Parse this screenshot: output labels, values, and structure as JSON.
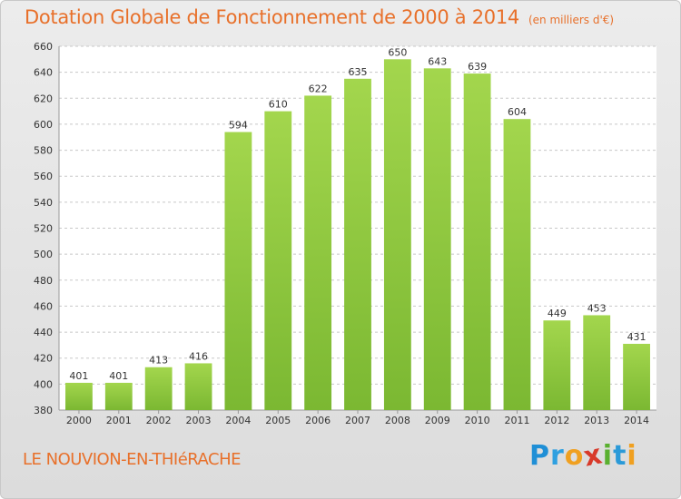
{
  "chart_data": {
    "type": "bar",
    "title": "Dotation Globale de Fonctionnement de 2000 à 2014",
    "subtitle": "(en milliers d'€)",
    "categories": [
      "2000",
      "2001",
      "2002",
      "2003",
      "2004",
      "2005",
      "2006",
      "2007",
      "2008",
      "2009",
      "2010",
      "2011",
      "2012",
      "2013",
      "2014"
    ],
    "values": [
      401,
      401,
      413,
      416,
      594,
      610,
      622,
      635,
      650,
      643,
      639,
      604,
      449,
      453,
      431
    ],
    "ylim": [
      380,
      660
    ],
    "yticks": [
      380,
      400,
      420,
      440,
      460,
      480,
      500,
      520,
      540,
      560,
      580,
      600,
      620,
      640,
      660
    ],
    "grid": true,
    "bar_color": "#7bb832",
    "bar_color_light": "#a3d64d"
  },
  "footer": {
    "place_name": "LE NOUVION-EN-THIéRACHE"
  },
  "logo": {
    "letters": [
      {
        "char": "P",
        "color": "#1f8fd6"
      },
      {
        "char": "r",
        "color": "#2fa0e0"
      },
      {
        "char": "o",
        "color": "#f0a020"
      },
      {
        "char": "x",
        "color": "#d83a2a"
      },
      {
        "char": "i",
        "color": "#5ab030"
      },
      {
        "char": "t",
        "color": "#2b9ad8"
      },
      {
        "char": "i",
        "color": "#f0a020"
      }
    ]
  }
}
